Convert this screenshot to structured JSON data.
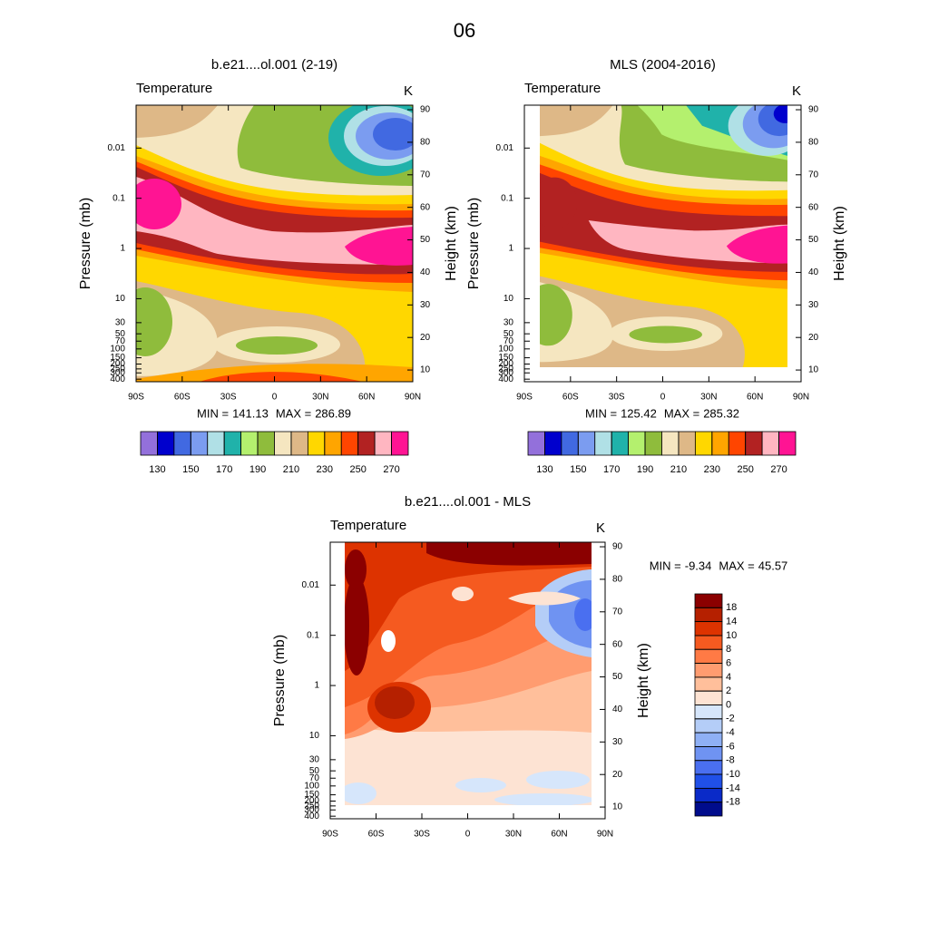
{
  "title": "06",
  "chart_data": [
    {
      "type": "contour",
      "title": "b.e21....ol.001 (2-19)",
      "left_string": "Temperature",
      "right_string": "K",
      "ylabel": "Pressure (mb)",
      "y2label": "Height (km)",
      "min_label": "MIN =",
      "min": 141.13,
      "max_label": "MAX =",
      "max": 286.89,
      "xlim": [
        -90,
        90
      ],
      "xticks": [
        {
          "value": -90,
          "label": "90S"
        },
        {
          "value": -60,
          "label": "60S"
        },
        {
          "value": -30,
          "label": "30S"
        },
        0,
        {
          "value": 30,
          "label": "30N"
        },
        {
          "value": 60,
          "label": "60N"
        },
        {
          "value": 90,
          "label": "90N"
        }
      ],
      "ylim": [
        450,
        0.0014
      ],
      "ylog": true,
      "yticks": [
        0.01,
        0.1,
        1,
        10,
        30,
        50,
        70,
        100,
        150,
        200,
        250,
        300,
        400
      ],
      "y2lim": [
        6.4,
        91.4
      ],
      "y2ticks": [
        10,
        20,
        30,
        40,
        50,
        60,
        70,
        80,
        90
      ],
      "colorbar": {
        "orientation": "horizontal",
        "levels": [
          130,
          150,
          170,
          190,
          210,
          230,
          250,
          270
        ],
        "colors": [
          "#9370db",
          "#0000cd",
          "#4169e1",
          "#7b9cf0",
          "#b0e0e6",
          "#20b2aa",
          "#b4f06e",
          "#8fbc3c",
          "#f5e6c0",
          "#deb887",
          "#ffd700",
          "#ffa500",
          "#ff4500",
          "#b22222",
          "#ffb6c1",
          "#ff1493"
        ]
      }
    },
    {
      "type": "contour",
      "title": "MLS (2004-2016)",
      "left_string": "Temperature",
      "right_string": "K",
      "ylabel": "Pressure (mb)",
      "y2label": "Height (km)",
      "min_label": "MIN =",
      "min": 125.42,
      "max_label": "MAX =",
      "max": 285.32,
      "xlim": [
        -90,
        90
      ],
      "xticks": [
        {
          "value": -90,
          "label": "90S"
        },
        {
          "value": -60,
          "label": "60S"
        },
        {
          "value": -30,
          "label": "30S"
        },
        0,
        {
          "value": 30,
          "label": "30N"
        },
        {
          "value": 60,
          "label": "60N"
        },
        {
          "value": 90,
          "label": "90N"
        }
      ],
      "ylim": [
        450,
        0.0014
      ],
      "ylog": true,
      "yticks": [
        0.01,
        0.1,
        1,
        10,
        30,
        50,
        70,
        100,
        150,
        200,
        250,
        300,
        400
      ],
      "y2lim": [
        6.4,
        91.4
      ],
      "y2ticks": [
        10,
        20,
        30,
        40,
        50,
        60,
        70,
        80,
        90
      ],
      "colorbar": {
        "orientation": "horizontal",
        "levels": [
          130,
          150,
          170,
          190,
          210,
          230,
          250,
          270
        ],
        "colors": [
          "#9370db",
          "#0000cd",
          "#4169e1",
          "#7b9cf0",
          "#b0e0e6",
          "#20b2aa",
          "#b4f06e",
          "#8fbc3c",
          "#f5e6c0",
          "#deb887",
          "#ffd700",
          "#ffa500",
          "#ff4500",
          "#b22222",
          "#ffb6c1",
          "#ff1493"
        ]
      }
    },
    {
      "type": "contour",
      "title": "b.e21....ol.001 - MLS",
      "left_string": "Temperature",
      "right_string": "K",
      "ylabel": "Pressure (mb)",
      "y2label": "Height (km)",
      "min_label": "MIN =",
      "min": -9.34,
      "max_label": "MAX =",
      "max": 45.57,
      "xlim": [
        -90,
        90
      ],
      "xticks": [
        {
          "value": -90,
          "label": "90S"
        },
        {
          "value": -60,
          "label": "60S"
        },
        {
          "value": -30,
          "label": "30S"
        },
        0,
        {
          "value": 30,
          "label": "30N"
        },
        {
          "value": 60,
          "label": "60N"
        },
        {
          "value": 90,
          "label": "90N"
        }
      ],
      "ylim": [
        450,
        0.0014
      ],
      "ylog": true,
      "yticks": [
        0.01,
        0.1,
        1,
        10,
        30,
        50,
        70,
        100,
        150,
        200,
        250,
        300,
        400
      ],
      "y2lim": [
        6.4,
        91.4
      ],
      "y2ticks": [
        10,
        20,
        30,
        40,
        50,
        60,
        70,
        80,
        90
      ],
      "colorbar": {
        "orientation": "vertical",
        "levels": [
          18,
          14,
          10,
          8,
          6,
          4,
          2,
          0,
          -2,
          -4,
          -6,
          -8,
          -10,
          -14,
          -18
        ],
        "colors": [
          "#8b0000",
          "#b52000",
          "#dd3300",
          "#f55a20",
          "#ff7a45",
          "#ff9c70",
          "#ffbf9b",
          "#fde3d3",
          "#d6e6fb",
          "#b4cdf7",
          "#8fb0f5",
          "#6f93f2",
          "#4a6ff0",
          "#2050e8",
          "#0a2ac8",
          "#000c8c"
        ]
      }
    }
  ]
}
